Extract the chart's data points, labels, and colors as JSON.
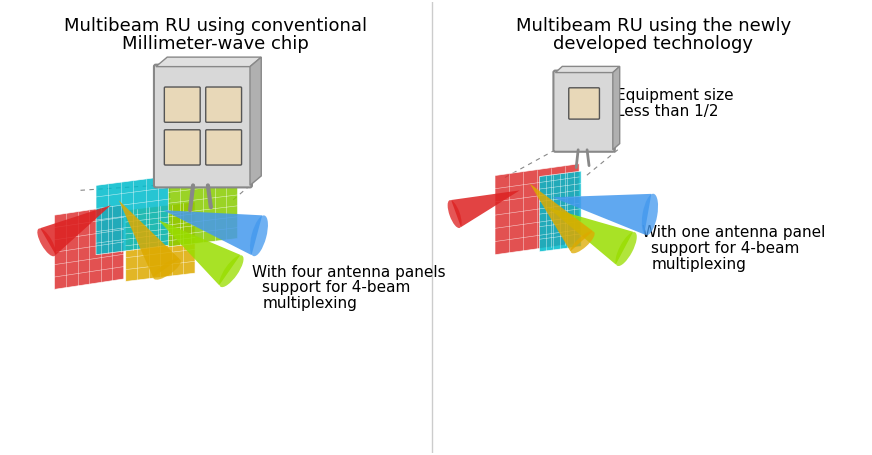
{
  "bg_color": "#ffffff",
  "left_title_line1": "Multibeam RU using conventional",
  "left_title_line2": "Millimeter-wave chip",
  "right_title_line1": "Multibeam RU using the newly",
  "right_title_line2": "developed technology",
  "left_caption_line1": "With four antenna panels",
  "left_caption_line2": "support for 4-beam",
  "left_caption_line3": "multiplexing",
  "right_caption_line1": "With one antenna panel",
  "right_caption_line2": "support for 4-beam",
  "right_caption_line3": "multiplexing",
  "equipment_label_line1": "Equipment size",
  "equipment_label_line2": "Less than 1/2",
  "title_fontsize": 13,
  "caption_fontsize": 11,
  "body_color": "#c8c8c8",
  "panel_red": "#dd2222",
  "panel_cyan": "#00ccdd",
  "panel_green": "#99dd00",
  "panel_yellow": "#ddaa00",
  "cone_blue": "#4499ee",
  "cone_red": "#dd2222",
  "cone_green": "#99dd00",
  "cone_yellow": "#ddaa00",
  "grid_color_red": "#cc3333",
  "grid_color_cyan": "#00bbcc",
  "grid_color_green": "#88cc00",
  "grid_color_yellow": "#ccaa00"
}
